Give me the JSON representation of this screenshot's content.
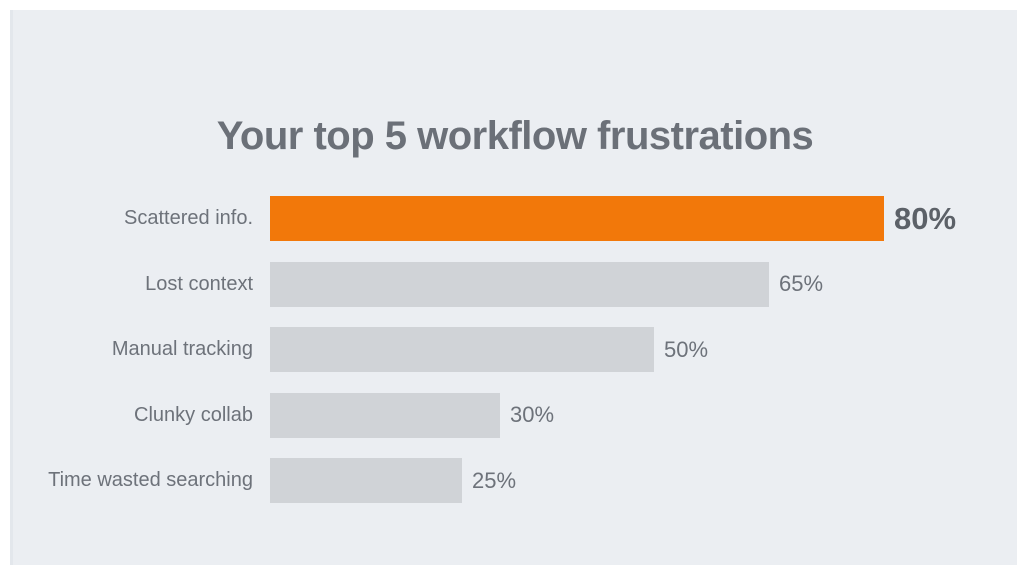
{
  "slide": {
    "background_color": "#ffffff",
    "panel_color": "#ebeef2"
  },
  "chart_data": {
    "type": "bar",
    "orientation": "horizontal",
    "title": "Your top 5 workflow frustrations",
    "categories": [
      "Scattered info.",
      "Lost context",
      "Manual tracking",
      "Clunky collab",
      "Time wasted searching"
    ],
    "values": [
      80,
      65,
      50,
      30,
      25
    ],
    "value_labels": [
      "80%",
      "65%",
      "50%",
      "30%",
      "25%"
    ],
    "xlabel": "",
    "ylabel": "",
    "xlim": [
      0,
      100
    ],
    "grid": false,
    "legend": false,
    "highlight_index": 0,
    "highlight_color": "#f2780a",
    "bar_color": "#d0d3d7",
    "title_color": "#6b7078",
    "label_color": "#6d727a",
    "highlight_value_color": "#5c6168"
  }
}
